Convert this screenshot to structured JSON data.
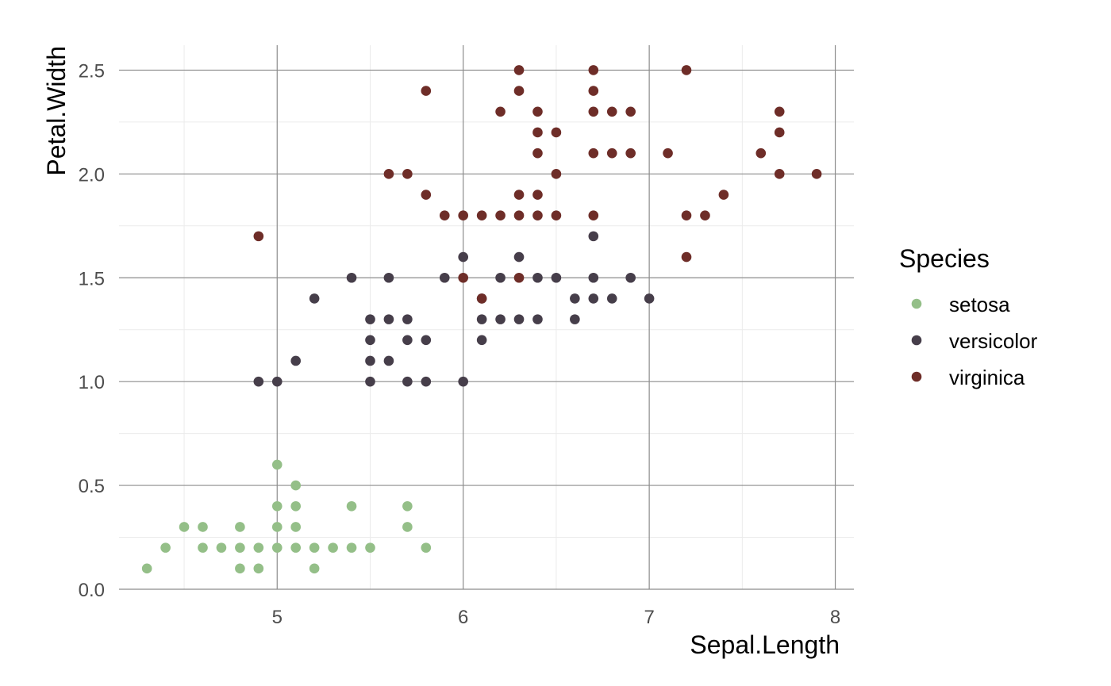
{
  "chart_data": {
    "type": "scatter",
    "title": "",
    "xlabel": "Sepal.Length",
    "ylabel": "Petal.Width",
    "xlim": [
      4.15,
      8.1
    ],
    "ylim": [
      0.0,
      2.62
    ],
    "x_ticks": [
      5,
      6,
      7,
      8
    ],
    "x_tick_labels": [
      "5",
      "6",
      "7",
      "8"
    ],
    "y_ticks": [
      0.0,
      0.5,
      1.0,
      1.5,
      2.0,
      2.5
    ],
    "y_tick_labels": [
      "0.0",
      "0.5",
      "1.0",
      "1.5",
      "2.0",
      "2.5"
    ],
    "grid": true,
    "legend": {
      "title": "Species",
      "placement": "right"
    },
    "series": [
      {
        "name": "setosa",
        "color": "#94bf88",
        "points": [
          [
            4.3,
            0.1
          ],
          [
            4.4,
            0.2
          ],
          [
            4.5,
            0.3
          ],
          [
            4.6,
            0.2
          ],
          [
            4.6,
            0.3
          ],
          [
            4.7,
            0.2
          ],
          [
            4.8,
            0.1
          ],
          [
            4.8,
            0.2
          ],
          [
            4.8,
            0.3
          ],
          [
            4.9,
            0.1
          ],
          [
            4.9,
            0.2
          ],
          [
            5.0,
            0.2
          ],
          [
            5.0,
            0.3
          ],
          [
            5.0,
            0.4
          ],
          [
            5.0,
            0.6
          ],
          [
            5.1,
            0.2
          ],
          [
            5.1,
            0.3
          ],
          [
            5.1,
            0.4
          ],
          [
            5.1,
            0.5
          ],
          [
            5.2,
            0.1
          ],
          [
            5.2,
            0.2
          ],
          [
            5.3,
            0.2
          ],
          [
            5.4,
            0.2
          ],
          [
            5.4,
            0.4
          ],
          [
            5.5,
            0.2
          ],
          [
            5.7,
            0.3
          ],
          [
            5.7,
            0.4
          ],
          [
            5.8,
            0.2
          ]
        ]
      },
      {
        "name": "versicolor",
        "color": "#463e4a",
        "points": [
          [
            4.9,
            1.0
          ],
          [
            5.0,
            1.0
          ],
          [
            5.1,
            1.1
          ],
          [
            5.2,
            1.4
          ],
          [
            5.4,
            1.5
          ],
          [
            5.5,
            1.0
          ],
          [
            5.5,
            1.1
          ],
          [
            5.5,
            1.2
          ],
          [
            5.5,
            1.3
          ],
          [
            5.6,
            1.1
          ],
          [
            5.6,
            1.3
          ],
          [
            5.6,
            1.5
          ],
          [
            5.7,
            1.0
          ],
          [
            5.7,
            1.2
          ],
          [
            5.7,
            1.3
          ],
          [
            5.8,
            1.0
          ],
          [
            5.8,
            1.2
          ],
          [
            5.9,
            1.5
          ],
          [
            6.0,
            1.0
          ],
          [
            6.0,
            1.6
          ],
          [
            6.1,
            1.2
          ],
          [
            6.1,
            1.3
          ],
          [
            6.1,
            1.4
          ],
          [
            6.2,
            1.3
          ],
          [
            6.2,
            1.5
          ],
          [
            6.3,
            1.3
          ],
          [
            6.3,
            1.6
          ],
          [
            6.4,
            1.3
          ],
          [
            6.4,
            1.5
          ],
          [
            6.5,
            1.5
          ],
          [
            6.6,
            1.3
          ],
          [
            6.6,
            1.4
          ],
          [
            6.7,
            1.4
          ],
          [
            6.7,
            1.5
          ],
          [
            6.7,
            1.7
          ],
          [
            6.8,
            1.4
          ],
          [
            6.9,
            1.5
          ],
          [
            7.0,
            1.4
          ]
        ]
      },
      {
        "name": "virginica",
        "color": "#6e2d28",
        "points": [
          [
            4.9,
            1.7
          ],
          [
            5.6,
            2.0
          ],
          [
            5.7,
            2.0
          ],
          [
            5.8,
            1.9
          ],
          [
            5.8,
            2.4
          ],
          [
            5.9,
            1.8
          ],
          [
            6.0,
            1.5
          ],
          [
            6.0,
            1.8
          ],
          [
            6.1,
            1.4
          ],
          [
            6.1,
            1.8
          ],
          [
            6.2,
            1.8
          ],
          [
            6.2,
            2.3
          ],
          [
            6.3,
            1.5
          ],
          [
            6.3,
            1.8
          ],
          [
            6.3,
            1.9
          ],
          [
            6.3,
            2.4
          ],
          [
            6.3,
            2.5
          ],
          [
            6.4,
            1.8
          ],
          [
            6.4,
            1.9
          ],
          [
            6.4,
            2.1
          ],
          [
            6.4,
            2.2
          ],
          [
            6.4,
            2.3
          ],
          [
            6.5,
            1.8
          ],
          [
            6.5,
            2.0
          ],
          [
            6.5,
            2.2
          ],
          [
            6.7,
            1.8
          ],
          [
            6.7,
            2.1
          ],
          [
            6.7,
            2.3
          ],
          [
            6.7,
            2.4
          ],
          [
            6.7,
            2.5
          ],
          [
            6.8,
            2.1
          ],
          [
            6.8,
            2.3
          ],
          [
            6.9,
            2.1
          ],
          [
            6.9,
            2.3
          ],
          [
            7.1,
            2.1
          ],
          [
            7.2,
            1.6
          ],
          [
            7.2,
            1.8
          ],
          [
            7.2,
            2.5
          ],
          [
            7.3,
            1.8
          ],
          [
            7.4,
            1.9
          ],
          [
            7.6,
            2.1
          ],
          [
            7.7,
            2.0
          ],
          [
            7.7,
            2.2
          ],
          [
            7.7,
            2.3
          ],
          [
            7.9,
            2.0
          ]
        ]
      }
    ]
  }
}
